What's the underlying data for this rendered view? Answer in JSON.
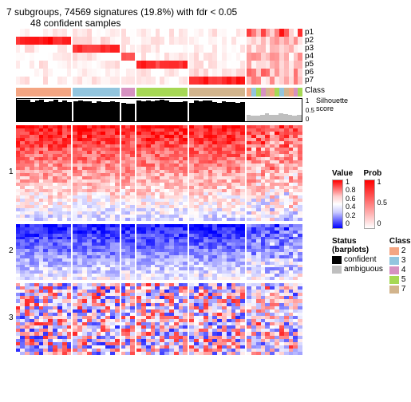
{
  "title": "7 subgroups, 74569 signatures (19.8%) with fdr < 0.05",
  "subtitle": "48 confident samples",
  "p_labels": [
    "p1",
    "p2",
    "p3",
    "p4",
    "p5",
    "p6",
    "p7"
  ],
  "class_label": "Class",
  "sil_label": "Silhouette\nscore",
  "sil_ticks": [
    "1",
    "0.5",
    "0"
  ],
  "row_block_labels": [
    "1",
    "2",
    "3"
  ],
  "value_legend": {
    "title": "Value",
    "ticks": [
      "1",
      "0.8",
      "0.6",
      "0.4",
      "0.2",
      "0"
    ],
    "colors": [
      "#ff0000",
      "#ff6666",
      "#ffcccc",
      "#ffffff",
      "#ccccff",
      "#6666ff",
      "#0000ff"
    ]
  },
  "prob_legend": {
    "title": "Prob",
    "ticks": [
      "1",
      "0.5",
      "0"
    ],
    "colors": [
      "#ff0000",
      "#ffffff"
    ]
  },
  "status_legend": {
    "title": "Status (barplots)",
    "items": [
      {
        "label": "confident",
        "color": "#000000"
      },
      {
        "label": "ambiguous",
        "color": "#bfbfbf"
      }
    ]
  },
  "class_legend": {
    "title": "Class",
    "items": [
      {
        "label": "2",
        "color": "#f4a582"
      },
      {
        "label": "3",
        "color": "#92c5de"
      },
      {
        "label": "4",
        "color": "#d691c1"
      },
      {
        "label": "5",
        "color": "#a6d854"
      },
      {
        "label": "7",
        "color": "#d2b48c"
      }
    ]
  },
  "groups": [
    {
      "class": 2,
      "color": "#f4a582",
      "n": 12,
      "ambiguous": false
    },
    {
      "class": 3,
      "color": "#92c5de",
      "n": 10,
      "ambiguous": false
    },
    {
      "class": 4,
      "color": "#d691c1",
      "n": 3,
      "ambiguous": false
    },
    {
      "class": 5,
      "color": "#a6d854",
      "n": 11,
      "ambiguous": false
    },
    {
      "class": 7,
      "color": "#d2b48c",
      "n": 12,
      "ambiguous": false
    },
    {
      "class": 0,
      "color": "#ffffff",
      "n": 12,
      "ambiguous": true
    }
  ],
  "p_intensity_comment": "per-group base intensity 0..1 for each p row, defines where red is strong",
  "p_matrix": [
    [
      0.05,
      0.05,
      0.05,
      0.05,
      0.05,
      0.6
    ],
    [
      0.9,
      0.1,
      0.05,
      0.05,
      0.05,
      0.3
    ],
    [
      0.05,
      0.8,
      0.05,
      0.05,
      0.05,
      0.2
    ],
    [
      0.05,
      0.05,
      0.75,
      0.05,
      0.05,
      0.3
    ],
    [
      0.05,
      0.05,
      0.05,
      0.8,
      0.05,
      0.25
    ],
    [
      0.05,
      0.05,
      0.05,
      0.05,
      0.1,
      0.45
    ],
    [
      0.05,
      0.05,
      0.05,
      0.05,
      0.85,
      0.35
    ]
  ],
  "sil_heights_comment": "silhouette per group: mean height 0..1 and color",
  "sil": [
    {
      "mean": 0.92,
      "color": "#000000"
    },
    {
      "mean": 0.88,
      "color": "#000000"
    },
    {
      "mean": 0.8,
      "color": "#000000"
    },
    {
      "mean": 0.9,
      "color": "#000000"
    },
    {
      "mean": 0.87,
      "color": "#000000"
    },
    {
      "mean": 0.3,
      "color": "#bfbfbf"
    }
  ],
  "heatmap_blocks_comment": "three row blocks; for each, per-group base color scheme",
  "blocks": [
    {
      "rows": 30,
      "scheme": "red_high"
    },
    {
      "rows": 18,
      "scheme": "blue_high"
    },
    {
      "rows": 22,
      "scheme": "mixed"
    }
  ],
  "fontsize_title": 12,
  "fontsize_labels": 10,
  "background_color": "#ffffff",
  "gap_color": "#ffffff",
  "ambiguous_class_colors": [
    "#f4a582",
    "#92c5de",
    "#a6d854",
    "#d691c1",
    "#d2b48c",
    "#f4a582",
    "#a6d854",
    "#92c5de",
    "#d2b48c",
    "#f4a582",
    "#d691c1",
    "#a6d854"
  ]
}
